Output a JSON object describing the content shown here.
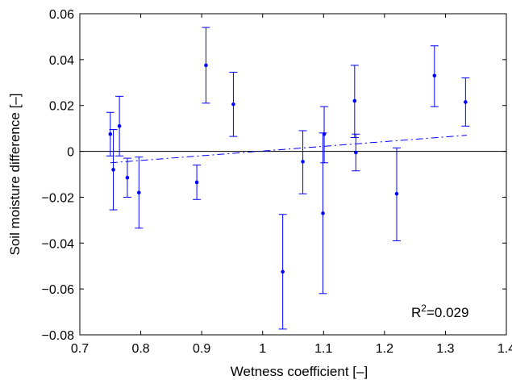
{
  "chart_data": {
    "type": "scatter",
    "xlabel": "Wetness coefficient [–]",
    "ylabel": "Soil moisture difference [–]",
    "xlim": [
      0.7,
      1.4
    ],
    "ylim": [
      -0.08,
      0.06
    ],
    "xticks": [
      0.7,
      0.8,
      0.9,
      1.0,
      1.1,
      1.2,
      1.3,
      1.4
    ],
    "xtick_labels": [
      "0.7",
      "0.8",
      "0.9",
      "1",
      "1.1",
      "1.2",
      "1.3",
      "1.4"
    ],
    "yticks": [
      -0.08,
      -0.06,
      -0.04,
      -0.02,
      0,
      0.02,
      0.04,
      0.06
    ],
    "ytick_labels": [
      "−0.08",
      "−0.06",
      "−0.04",
      "−0.02",
      "0",
      "0.02",
      "0.04",
      "0.06"
    ],
    "grid": false,
    "annotation": {
      "prefix": "R",
      "sup": "2",
      "suffix": "=0.029"
    },
    "zero_line": 0,
    "trend_line": {
      "x": [
        0.75,
        1.335
      ],
      "y": [
        -0.005,
        0.007
      ]
    },
    "points": [
      {
        "x": 0.75,
        "y": 0.0075,
        "lo": -0.002,
        "hi": 0.017
      },
      {
        "x": 0.755,
        "y": -0.008,
        "lo": -0.0255,
        "hi": 0.0095
      },
      {
        "x": 0.765,
        "y": 0.011,
        "lo": -0.002,
        "hi": 0.024
      },
      {
        "x": 0.778,
        "y": -0.0115,
        "lo": -0.02,
        "hi": -0.003
      },
      {
        "x": 0.797,
        "y": -0.018,
        "lo": -0.0335,
        "hi": -0.0025
      },
      {
        "x": 0.892,
        "y": -0.0135,
        "lo": -0.021,
        "hi": -0.006
      },
      {
        "x": 0.907,
        "y": 0.0375,
        "lo": 0.021,
        "hi": 0.054
      },
      {
        "x": 0.952,
        "y": 0.0205,
        "lo": 0.0065,
        "hi": 0.0345
      },
      {
        "x": 1.033,
        "y": -0.0525,
        "lo": -0.0775,
        "hi": -0.0275
      },
      {
        "x": 1.066,
        "y": -0.0045,
        "lo": -0.0185,
        "hi": 0.009
      },
      {
        "x": 1.099,
        "y": -0.027,
        "lo": -0.062,
        "hi": 0.008
      },
      {
        "x": 1.101,
        "y": 0.0075,
        "lo": -0.005,
        "hi": 0.0195
      },
      {
        "x": 1.151,
        "y": 0.022,
        "lo": 0.006,
        "hi": 0.0375
      },
      {
        "x": 1.153,
        "y": -0.0005,
        "lo": -0.0085,
        "hi": 0.0075
      },
      {
        "x": 1.22,
        "y": -0.0185,
        "lo": -0.039,
        "hi": 0.0015
      },
      {
        "x": 1.282,
        "y": 0.033,
        "lo": 0.0195,
        "hi": 0.046
      },
      {
        "x": 1.333,
        "y": 0.0215,
        "lo": 0.011,
        "hi": 0.032
      }
    ],
    "colors": {
      "series": "#0000ff",
      "axis": "#000000",
      "zero_line": "#000000"
    }
  }
}
